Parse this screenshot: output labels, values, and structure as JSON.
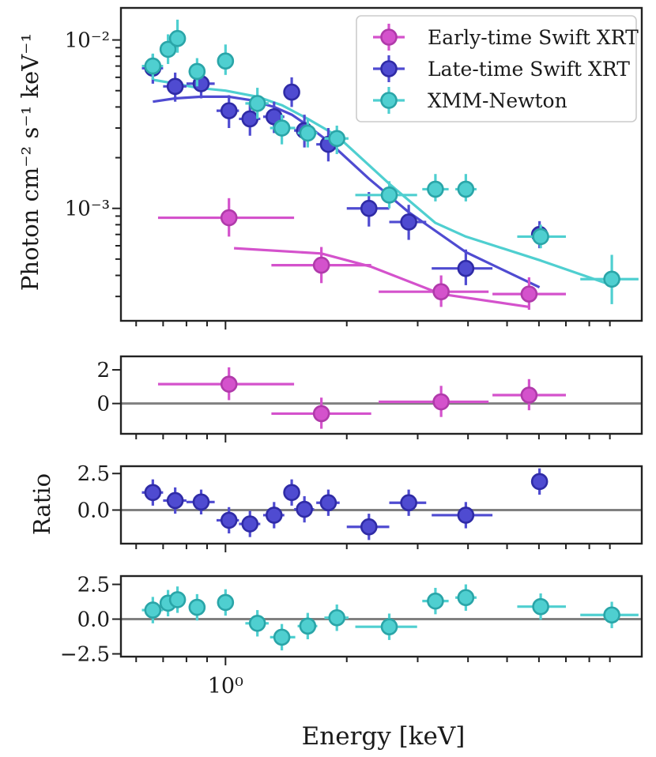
{
  "chart_data": {
    "type": "scatter",
    "xlabel": "Energy [keV]",
    "xscale": "log",
    "xlim": [
      0.55,
      10.8
    ],
    "x_tick_labels": [
      {
        "value": 1.0,
        "label": "10⁰"
      }
    ],
    "x_minor_ticks": [
      0.6,
      0.7,
      0.8,
      0.9,
      2,
      3,
      4,
      5,
      6,
      7,
      8,
      9
    ],
    "legend_position": "top-right",
    "panels": [
      {
        "id": "spectrum",
        "ylabel": "Photon cm⁻² s⁻¹ keV⁻¹",
        "yscale": "log",
        "ylim": [
          0.000215,
          0.0155
        ],
        "y_tick_labels": [
          {
            "value": 0.01,
            "label": "10⁻²"
          },
          {
            "value": 0.001,
            "label": "10⁻³"
          }
        ],
        "y_minor_ticks": [
          0.0003,
          0.0004,
          0.0005,
          0.0006,
          0.0007,
          0.0008,
          0.0009,
          0.002,
          0.003,
          0.004,
          0.005,
          0.006,
          0.007,
          0.008,
          0.009
        ],
        "series": [
          {
            "name": "Early-time Swift XRT",
            "color": "#d452cc",
            "edge": "#b03aaa",
            "points": [
              {
                "x": 1.02,
                "xlo": 0.68,
                "xhi": 1.48,
                "y": 0.00088,
                "ylo": 0.00068,
                "yhi": 0.00115
              },
              {
                "x": 1.73,
                "xlo": 1.3,
                "xhi": 2.3,
                "y": 0.00046,
                "ylo": 0.00036,
                "yhi": 0.00059
              },
              {
                "x": 3.43,
                "xlo": 2.4,
                "xhi": 4.5,
                "y": 0.00032,
                "ylo": 0.00026,
                "yhi": 0.0004
              },
              {
                "x": 5.67,
                "xlo": 4.6,
                "xhi": 7.0,
                "y": 0.00031,
                "ylo": 0.00025,
                "yhi": 0.00039
              }
            ],
            "model": [
              [
                1.05,
                0.00058
              ],
              [
                1.73,
                0.00054
              ],
              [
                2.3,
                0.00045
              ],
              [
                3.43,
                0.00031
              ],
              [
                5.67,
                0.00026
              ]
            ]
          },
          {
            "name": "Late-time Swift XRT",
            "color": "#4f4bd1",
            "edge": "#2f2ba6",
            "points": [
              {
                "x": 0.66,
                "xlo": 0.62,
                "xhi": 0.7,
                "y": 0.0068,
                "ylo": 0.0055,
                "yhi": 0.0082
              },
              {
                "x": 0.75,
                "xlo": 0.7,
                "xhi": 0.8,
                "y": 0.0053,
                "ylo": 0.0043,
                "yhi": 0.0064
              },
              {
                "x": 0.87,
                "xlo": 0.8,
                "xhi": 0.94,
                "y": 0.0055,
                "ylo": 0.0045,
                "yhi": 0.0067
              },
              {
                "x": 1.02,
                "xlo": 0.95,
                "xhi": 1.08,
                "y": 0.0038,
                "ylo": 0.003,
                "yhi": 0.0047
              },
              {
                "x": 1.15,
                "xlo": 1.08,
                "xhi": 1.22,
                "y": 0.0034,
                "ylo": 0.0027,
                "yhi": 0.0042
              },
              {
                "x": 1.32,
                "xlo": 1.24,
                "xhi": 1.4,
                "y": 0.0035,
                "ylo": 0.0028,
                "yhi": 0.0043
              },
              {
                "x": 1.46,
                "xlo": 1.4,
                "xhi": 1.52,
                "y": 0.0049,
                "ylo": 0.004,
                "yhi": 0.006
              },
              {
                "x": 1.57,
                "xlo": 1.48,
                "xhi": 1.66,
                "y": 0.0029,
                "ylo": 0.0023,
                "yhi": 0.0036
              },
              {
                "x": 1.8,
                "xlo": 1.68,
                "xhi": 1.92,
                "y": 0.0024,
                "ylo": 0.0019,
                "yhi": 0.003
              },
              {
                "x": 2.27,
                "xlo": 2.0,
                "xhi": 2.55,
                "y": 0.001,
                "ylo": 0.00078,
                "yhi": 0.00125
              },
              {
                "x": 2.85,
                "xlo": 2.55,
                "xhi": 3.15,
                "y": 0.00083,
                "ylo": 0.00065,
                "yhi": 0.00105
              },
              {
                "x": 3.95,
                "xlo": 3.25,
                "xhi": 4.6,
                "y": 0.00044,
                "ylo": 0.00035,
                "yhi": 0.00057
              },
              {
                "x": 6.02,
                "xlo": 5.75,
                "xhi": 6.3,
                "y": 0.0007,
                "ylo": 0.00058,
                "yhi": 0.00084
              }
            ],
            "model": [
              [
                0.66,
                0.0043
              ],
              [
                0.75,
                0.0045
              ],
              [
                0.87,
                0.0046
              ],
              [
                1.02,
                0.0046
              ],
              [
                1.15,
                0.0044
              ],
              [
                1.32,
                0.004
              ],
              [
                1.46,
                0.0036
              ],
              [
                1.57,
                0.0032
              ],
              [
                1.8,
                0.0025
              ],
              [
                2.27,
                0.0015
              ],
              [
                2.85,
                0.00095
              ],
              [
                3.95,
                0.00055
              ],
              [
                6.02,
                0.00034
              ]
            ]
          },
          {
            "name": "XMM-Newton",
            "color": "#4fcfd0",
            "edge": "#2aa5a8",
            "points": [
              {
                "x": 0.66,
                "xlo": 0.62,
                "xhi": 0.7,
                "y": 0.007,
                "ylo": 0.0058,
                "yhi": 0.0083
              },
              {
                "x": 0.72,
                "xlo": 0.7,
                "xhi": 0.745,
                "y": 0.0088,
                "ylo": 0.0072,
                "yhi": 0.0108
              },
              {
                "x": 0.76,
                "xlo": 0.745,
                "xhi": 0.78,
                "y": 0.0102,
                "ylo": 0.0084,
                "yhi": 0.0132
              },
              {
                "x": 0.85,
                "xlo": 0.81,
                "xhi": 0.89,
                "y": 0.0065,
                "ylo": 0.0053,
                "yhi": 0.0078
              },
              {
                "x": 1.0,
                "xlo": 0.96,
                "xhi": 1.04,
                "y": 0.0075,
                "ylo": 0.0062,
                "yhi": 0.0094
              },
              {
                "x": 1.2,
                "xlo": 1.12,
                "xhi": 1.28,
                "y": 0.0042,
                "ylo": 0.0034,
                "yhi": 0.0052
              },
              {
                "x": 1.38,
                "xlo": 1.29,
                "xhi": 1.49,
                "y": 0.003,
                "ylo": 0.0024,
                "yhi": 0.0036
              },
              {
                "x": 1.6,
                "xlo": 1.51,
                "xhi": 1.69,
                "y": 0.0028,
                "ylo": 0.0023,
                "yhi": 0.0034
              },
              {
                "x": 1.89,
                "xlo": 1.76,
                "xhi": 2.02,
                "y": 0.0026,
                "ylo": 0.0021,
                "yhi": 0.0031
              },
              {
                "x": 2.55,
                "xlo": 2.1,
                "xhi": 2.99,
                "y": 0.0012,
                "ylo": 0.001,
                "yhi": 0.00145
              },
              {
                "x": 3.32,
                "xlo": 3.08,
                "xhi": 3.58,
                "y": 0.0013,
                "ylo": 0.0011,
                "yhi": 0.0016
              },
              {
                "x": 3.95,
                "xlo": 3.72,
                "xhi": 4.2,
                "y": 0.0013,
                "ylo": 0.0011,
                "yhi": 0.0016
              },
              {
                "x": 6.06,
                "xlo": 5.3,
                "xhi": 7.0,
                "y": 0.00068,
                "ylo": 0.00058,
                "yhi": 0.0008
              },
              {
                "x": 9.1,
                "xlo": 7.6,
                "xhi": 10.6,
                "y": 0.00038,
                "ylo": 0.00027,
                "yhi": 0.00053
              }
            ],
            "model": [
              [
                0.66,
                0.0058
              ],
              [
                0.72,
                0.0056
              ],
              [
                0.85,
                0.0052
              ],
              [
                1.0,
                0.005
              ],
              [
                1.2,
                0.0046
              ],
              [
                1.38,
                0.0041
              ],
              [
                1.6,
                0.0034
              ],
              [
                1.89,
                0.0027
              ],
              [
                2.55,
                0.0014
              ],
              [
                3.32,
                0.00082
              ],
              [
                3.95,
                0.00068
              ],
              [
                6.06,
                0.00049
              ],
              [
                9.1,
                0.00035
              ]
            ]
          }
        ]
      },
      {
        "id": "ratio-early",
        "ylim": [
          -1.8,
          2.8
        ],
        "y_tick_labels": [
          {
            "value": 2,
            "label": "2"
          },
          {
            "value": 0,
            "label": "0"
          }
        ],
        "series": [
          {
            "name": "Early-time Swift XRT",
            "color": "#d452cc",
            "edge": "#b03aaa",
            "points": [
              {
                "x": 1.02,
                "xlo": 0.68,
                "xhi": 1.48,
                "y": 1.15,
                "ylo": 0.2,
                "yhi": 2.15
              },
              {
                "x": 1.73,
                "xlo": 1.3,
                "xhi": 2.3,
                "y": -0.6,
                "ylo": -1.5,
                "yhi": 0.35
              },
              {
                "x": 3.43,
                "xlo": 2.4,
                "xhi": 4.5,
                "y": 0.1,
                "ylo": -0.8,
                "yhi": 1.05
              },
              {
                "x": 5.67,
                "xlo": 4.6,
                "xhi": 7.0,
                "y": 0.5,
                "ylo": -0.4,
                "yhi": 1.45
              }
            ]
          }
        ]
      },
      {
        "id": "ratio-late",
        "ylabel": "Ratio",
        "ylim": [
          -2.3,
          3.0
        ],
        "y_tick_labels": [
          {
            "value": 2.5,
            "label": "2.5"
          },
          {
            "value": 0.0,
            "label": "0.0"
          }
        ],
        "series": [
          {
            "name": "Late-time Swift XRT",
            "color": "#4f4bd1",
            "edge": "#2f2ba6",
            "points": [
              {
                "x": 0.66,
                "xlo": 0.62,
                "xhi": 0.7,
                "y": 1.2,
                "ylo": 0.3,
                "yhi": 2.1
              },
              {
                "x": 0.75,
                "xlo": 0.7,
                "xhi": 0.8,
                "y": 0.65,
                "ylo": -0.25,
                "yhi": 1.55
              },
              {
                "x": 0.87,
                "xlo": 0.8,
                "xhi": 0.94,
                "y": 0.55,
                "ylo": -0.3,
                "yhi": 1.4
              },
              {
                "x": 1.02,
                "xlo": 0.95,
                "xhi": 1.08,
                "y": -0.7,
                "ylo": -1.6,
                "yhi": 0.2
              },
              {
                "x": 1.15,
                "xlo": 1.08,
                "xhi": 1.22,
                "y": -0.95,
                "ylo": -1.85,
                "yhi": -0.05
              },
              {
                "x": 1.32,
                "xlo": 1.24,
                "xhi": 1.4,
                "y": -0.35,
                "ylo": -1.25,
                "yhi": 0.55
              },
              {
                "x": 1.46,
                "xlo": 1.4,
                "xhi": 1.52,
                "y": 1.2,
                "ylo": 0.3,
                "yhi": 2.1
              },
              {
                "x": 1.57,
                "xlo": 1.48,
                "xhi": 1.66,
                "y": 0.05,
                "ylo": -0.85,
                "yhi": 0.95
              },
              {
                "x": 1.8,
                "xlo": 1.68,
                "xhi": 1.92,
                "y": 0.5,
                "ylo": -0.4,
                "yhi": 1.4
              },
              {
                "x": 2.27,
                "xlo": 2.0,
                "xhi": 2.55,
                "y": -1.15,
                "ylo": -2.05,
                "yhi": -0.25
              },
              {
                "x": 2.85,
                "xlo": 2.55,
                "xhi": 3.15,
                "y": 0.5,
                "ylo": -0.4,
                "yhi": 1.4
              },
              {
                "x": 3.95,
                "xlo": 3.25,
                "xhi": 4.6,
                "y": -0.35,
                "ylo": -1.25,
                "yhi": 0.55
              },
              {
                "x": 6.02,
                "xlo": 5.75,
                "xhi": 6.3,
                "y": 1.95,
                "ylo": 1.05,
                "yhi": 2.85
              }
            ]
          }
        ]
      },
      {
        "id": "ratio-xmm",
        "ylim": [
          -2.7,
          3.1
        ],
        "y_tick_labels": [
          {
            "value": 2.5,
            "label": "2.5"
          },
          {
            "value": 0.0,
            "label": "0.0"
          },
          {
            "value": -2.5,
            "label": "−2.5"
          }
        ],
        "series": [
          {
            "name": "XMM-Newton",
            "color": "#4fcfd0",
            "edge": "#2aa5a8",
            "points": [
              {
                "x": 0.66,
                "xlo": 0.62,
                "xhi": 0.7,
                "y": 0.65,
                "ylo": -0.3,
                "yhi": 1.6
              },
              {
                "x": 0.72,
                "xlo": 0.7,
                "xhi": 0.745,
                "y": 1.15,
                "ylo": 0.2,
                "yhi": 2.1
              },
              {
                "x": 0.76,
                "xlo": 0.745,
                "xhi": 0.78,
                "y": 1.4,
                "ylo": 0.45,
                "yhi": 2.35
              },
              {
                "x": 0.85,
                "xlo": 0.81,
                "xhi": 0.89,
                "y": 0.85,
                "ylo": -0.1,
                "yhi": 1.8
              },
              {
                "x": 1.0,
                "xlo": 0.96,
                "xhi": 1.04,
                "y": 1.2,
                "ylo": 0.25,
                "yhi": 2.15
              },
              {
                "x": 1.2,
                "xlo": 1.12,
                "xhi": 1.28,
                "y": -0.3,
                "ylo": -1.25,
                "yhi": 0.65
              },
              {
                "x": 1.38,
                "xlo": 1.29,
                "xhi": 1.49,
                "y": -1.3,
                "ylo": -2.25,
                "yhi": -0.35
              },
              {
                "x": 1.6,
                "xlo": 1.51,
                "xhi": 1.69,
                "y": -0.5,
                "ylo": -1.45,
                "yhi": 0.45
              },
              {
                "x": 1.89,
                "xlo": 1.76,
                "xhi": 2.02,
                "y": 0.1,
                "ylo": -0.85,
                "yhi": 1.05
              },
              {
                "x": 2.55,
                "xlo": 2.1,
                "xhi": 2.99,
                "y": -0.55,
                "ylo": -1.5,
                "yhi": 0.4
              },
              {
                "x": 3.32,
                "xlo": 3.08,
                "xhi": 3.58,
                "y": 1.3,
                "ylo": 0.35,
                "yhi": 2.25
              },
              {
                "x": 3.95,
                "xlo": 3.72,
                "xhi": 4.2,
                "y": 1.55,
                "ylo": 0.6,
                "yhi": 2.5
              },
              {
                "x": 6.06,
                "xlo": 5.3,
                "xhi": 7.0,
                "y": 0.9,
                "ylo": -0.05,
                "yhi": 1.85
              },
              {
                "x": 9.1,
                "xlo": 7.6,
                "xhi": 10.6,
                "y": 0.3,
                "ylo": -0.65,
                "yhi": 1.25
              }
            ]
          }
        ]
      }
    ]
  }
}
